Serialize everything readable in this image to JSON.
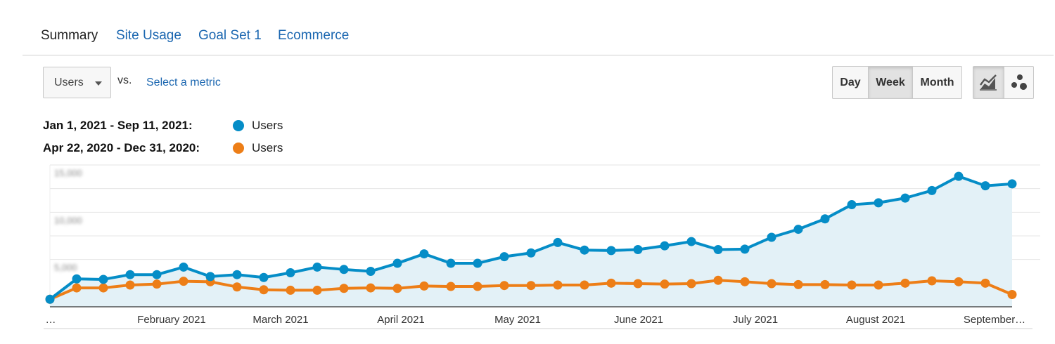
{
  "tabs": [
    "Summary",
    "Site Usage",
    "Goal Set 1",
    "Ecommerce"
  ],
  "metric": {
    "selected": "Users",
    "vs_label": "vs.",
    "select_link": "Select a metric"
  },
  "granularity": {
    "options": [
      "Day",
      "Week",
      "Month"
    ],
    "selected": "Week"
  },
  "view_icons": [
    "line-chart-icon",
    "motion-chart-icon"
  ],
  "colors": {
    "accent": "#1a66b0",
    "series_current": "#058dc7",
    "series_previous": "#ed7e17",
    "area_fill": "#e3f1f7"
  },
  "legend": [
    {
      "date_range": "Jan 1, 2021 - Sep 11, 2021:",
      "metric": "Users"
    },
    {
      "date_range": "Apr 22, 2020 - Dec 31, 2020:",
      "metric": "Users"
    }
  ],
  "chart_data": {
    "type": "line",
    "xlabels": [
      "…",
      "February 2021",
      "March 2021",
      "April 2021",
      "May 2021",
      "June 2021",
      "July 2021",
      "August 2021",
      "September…"
    ],
    "y_ticks": [
      "15,000",
      "10,000",
      "5,000"
    ],
    "y_ticks_blurred": true,
    "ylim": [
      0,
      15000
    ],
    "grid": true,
    "series": [
      {
        "name": "Users",
        "values": [
          800,
          2950,
          2900,
          3400,
          3400,
          4200,
          3200,
          3400,
          3100,
          3600,
          4200,
          3950,
          3750,
          4600,
          5600,
          4600,
          4600,
          5300,
          5700,
          6800,
          6000,
          5950,
          6050,
          6450,
          6900,
          6050,
          6100,
          7350,
          8200,
          9300,
          10800,
          11000,
          11500,
          12300,
          13800,
          12800,
          13000
        ]
      },
      {
        "name": "Users",
        "values": [
          800,
          2000,
          2000,
          2300,
          2400,
          2700,
          2650,
          2100,
          1800,
          1750,
          1750,
          1950,
          2000,
          1950,
          2200,
          2150,
          2150,
          2250,
          2250,
          2300,
          2300,
          2500,
          2450,
          2400,
          2450,
          2800,
          2650,
          2450,
          2350,
          2350,
          2300,
          2300,
          2500,
          2750,
          2650,
          2500,
          1300
        ]
      }
    ]
  }
}
